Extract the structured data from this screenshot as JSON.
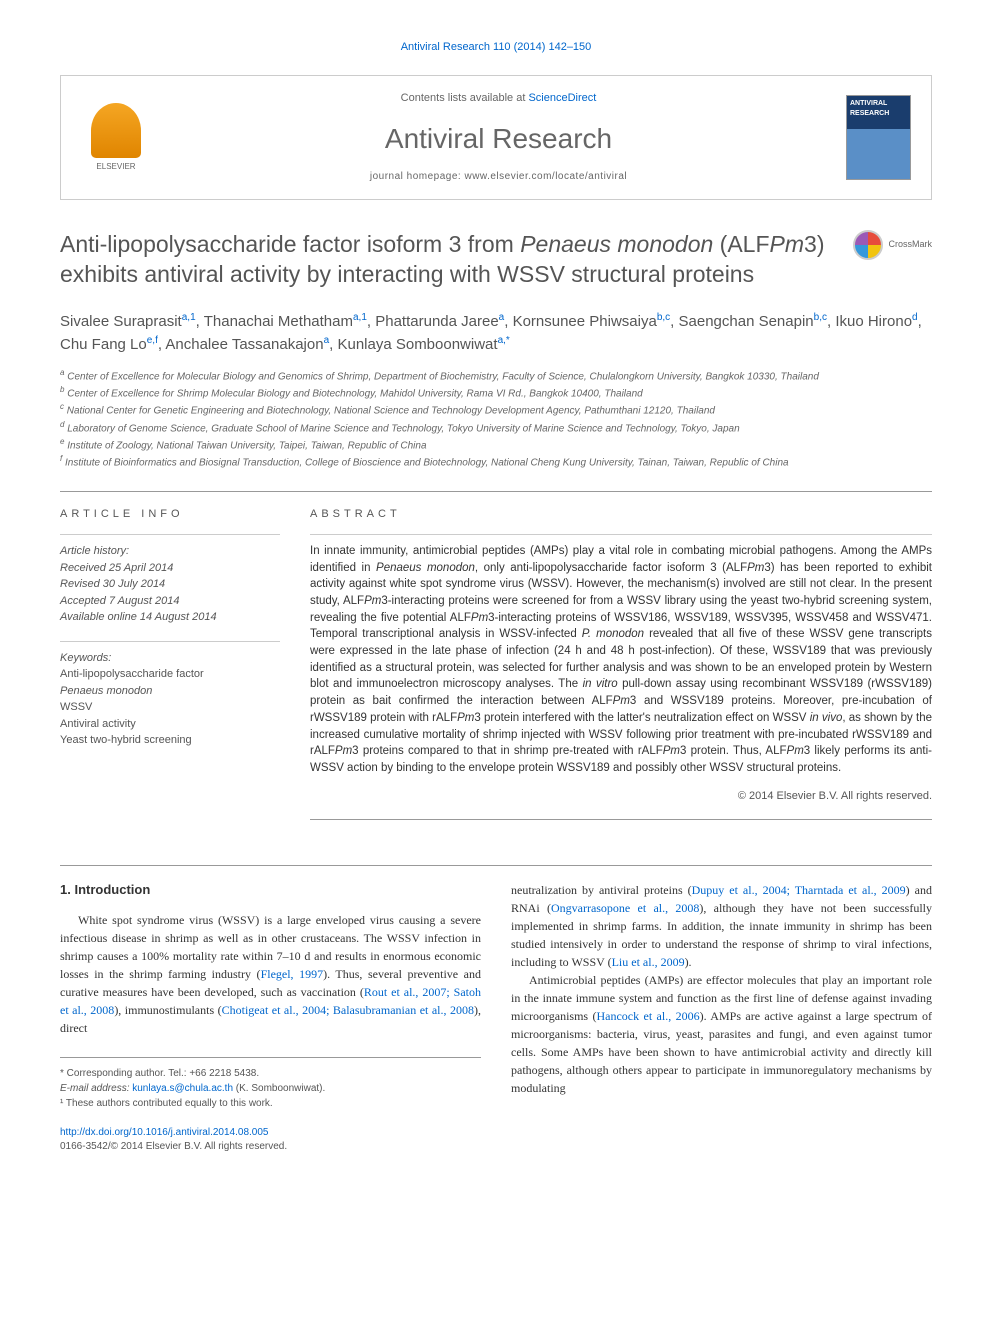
{
  "citation": "Antiviral Research 110 (2014) 142–150",
  "header": {
    "contents_prefix": "Contents lists available at ",
    "contents_link": "ScienceDirect",
    "journal_name": "Antiviral Research",
    "homepage_prefix": "journal homepage: ",
    "homepage_url": "www.elsevier.com/locate/antiviral",
    "publisher": "ELSEVIER",
    "cover_text": "ANTIVIRAL RESEARCH"
  },
  "crossmark_label": "CrossMark",
  "title_parts": {
    "p1": "Anti-lipopolysaccharide factor isoform 3 from ",
    "p2_italic": "Penaeus monodon",
    "p3": " (ALF",
    "p4_italic": "Pm",
    "p5": "3) exhibits antiviral activity by interacting with WSSV structural proteins"
  },
  "authors": [
    {
      "name": "Sivalee Suraprasit",
      "affil": "a,1"
    },
    {
      "name": "Thanachai Methatham",
      "affil": "a,1"
    },
    {
      "name": "Phattarunda Jaree",
      "affil": "a"
    },
    {
      "name": "Kornsunee Phiwsaiya",
      "affil": "b,c"
    },
    {
      "name": "Saengchan Senapin",
      "affil": "b,c"
    },
    {
      "name": "Ikuo Hirono",
      "affil": "d"
    },
    {
      "name": "Chu Fang Lo",
      "affil": "e,f"
    },
    {
      "name": "Anchalee Tassanakajon",
      "affil": "a"
    },
    {
      "name": "Kunlaya Somboonwiwat",
      "affil": "a,*"
    }
  ],
  "affiliations": [
    {
      "sup": "a",
      "text": "Center of Excellence for Molecular Biology and Genomics of Shrimp, Department of Biochemistry, Faculty of Science, Chulalongkorn University, Bangkok 10330, Thailand"
    },
    {
      "sup": "b",
      "text": "Center of Excellence for Shrimp Molecular Biology and Biotechnology, Mahidol University, Rama VI Rd., Bangkok 10400, Thailand"
    },
    {
      "sup": "c",
      "text": "National Center for Genetic Engineering and Biotechnology, National Science and Technology Development Agency, Pathumthani 12120, Thailand"
    },
    {
      "sup": "d",
      "text": "Laboratory of Genome Science, Graduate School of Marine Science and Technology, Tokyo University of Marine Science and Technology, Tokyo, Japan"
    },
    {
      "sup": "e",
      "text": "Institute of Zoology, National Taiwan University, Taipei, Taiwan, Republic of China"
    },
    {
      "sup": "f",
      "text": "Institute of Bioinformatics and Biosignal Transduction, College of Bioscience and Biotechnology, National Cheng Kung University, Tainan, Taiwan, Republic of China"
    }
  ],
  "info": {
    "header": "ARTICLE INFO",
    "history_label": "Article history:",
    "history": [
      "Received 25 April 2014",
      "Revised 30 July 2014",
      "Accepted 7 August 2014",
      "Available online 14 August 2014"
    ],
    "keywords_label": "Keywords:",
    "keywords": [
      {
        "text": "Anti-lipopolysaccharide factor",
        "italic": false
      },
      {
        "text": "Penaeus monodon",
        "italic": true
      },
      {
        "text": "WSSV",
        "italic": false
      },
      {
        "text": "Antiviral activity",
        "italic": false
      },
      {
        "text": "Yeast two-hybrid screening",
        "italic": false
      }
    ]
  },
  "abstract": {
    "header": "ABSTRACT",
    "copyright": "© 2014 Elsevier B.V. All rights reserved."
  },
  "intro": {
    "number": "1.",
    "title": "Introduction"
  },
  "footer": {
    "corresponding": "* Corresponding author. Tel.: +66 2218 5438.",
    "email_label": "E-mail address: ",
    "email": "kunlaya.s@chula.ac.th",
    "email_suffix": " (K. Somboonwiwat).",
    "equal": "¹ These authors contributed equally to this work.",
    "doi_url": "http://dx.doi.org/10.1016/j.antiviral.2014.08.005",
    "issn_copyright": "0166-3542/© 2014 Elsevier B.V. All rights reserved."
  },
  "colors": {
    "link": "#0066cc",
    "text": "#333333",
    "muted": "#666666",
    "heading": "#555555"
  }
}
